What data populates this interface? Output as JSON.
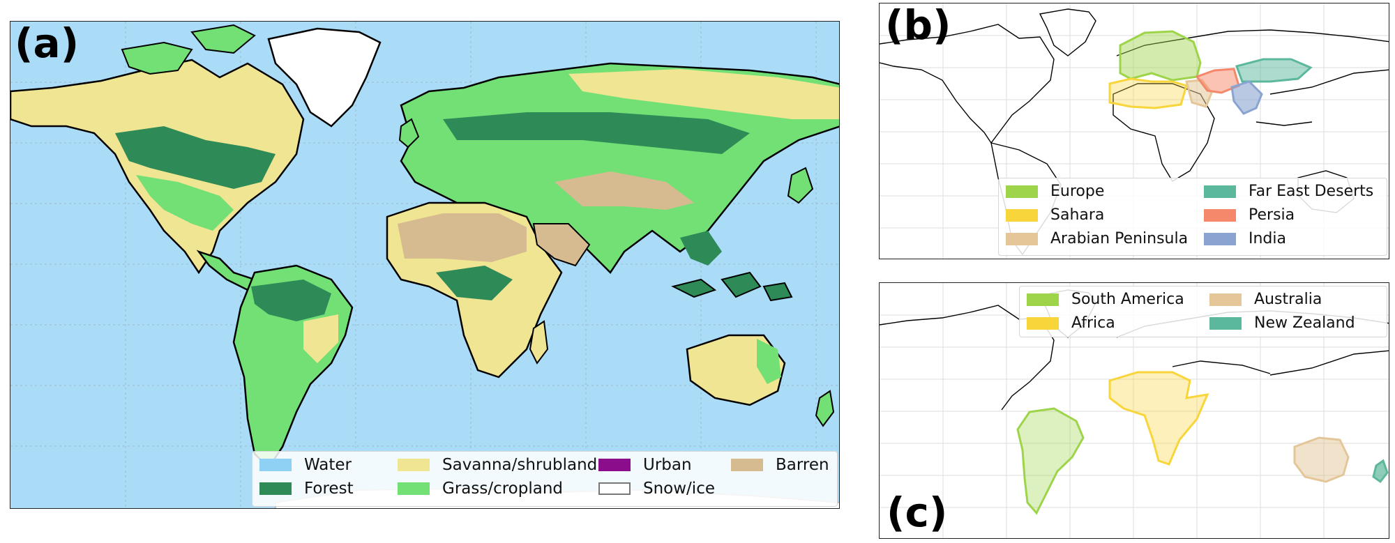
{
  "panels": {
    "a": {
      "label": "(a)",
      "legend": [
        {
          "label": "Water",
          "color": "#8fd0f5",
          "outline": false
        },
        {
          "label": "Savanna/shrubland",
          "color": "#efe592",
          "outline": false
        },
        {
          "label": "Urban",
          "color": "#8b0d8b",
          "outline": false
        },
        {
          "label": "Barren",
          "color": "#d7bb90",
          "outline": false
        },
        {
          "label": "Forest",
          "color": "#2e8b57",
          "outline": false
        },
        {
          "label": "Grass/cropland",
          "color": "#72e075",
          "outline": false
        },
        {
          "label": "Snow/ice",
          "color": "#ffffff",
          "outline": true
        }
      ]
    },
    "b": {
      "label": "(b)",
      "legend": [
        {
          "label": "Europe",
          "color": "#9dd44a"
        },
        {
          "label": "Far East Deserts",
          "color": "#5cb89c"
        },
        {
          "label": "Sahara",
          "color": "#f8d53a"
        },
        {
          "label": "Persia",
          "color": "#f5876a"
        },
        {
          "label": "Arabian Peninsula",
          "color": "#e4c698"
        },
        {
          "label": "India",
          "color": "#8ba3d1"
        }
      ]
    },
    "c": {
      "label": "(c)",
      "legend": [
        {
          "label": "South America",
          "color": "#9dd44a"
        },
        {
          "label": "Australia",
          "color": "#e4c698"
        },
        {
          "label": "Africa",
          "color": "#f8d53a"
        },
        {
          "label": "New Zealand",
          "color": "#5cb89c"
        }
      ]
    }
  },
  "colors": {
    "ocean": "#aadcf8",
    "coastline": "#000000",
    "grid": "#b8b8b8"
  }
}
